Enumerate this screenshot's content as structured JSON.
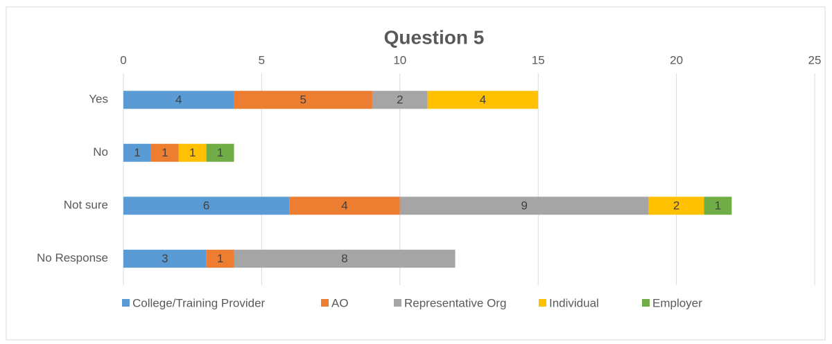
{
  "chart_data": {
    "type": "stacked_barh",
    "title": "Question 5",
    "categories": [
      "Yes",
      "No",
      "Not sure",
      "No Response"
    ],
    "series": [
      {
        "name": "College/Training Provider",
        "color": "#5b9bd5",
        "values": [
          4,
          1,
          6,
          3
        ]
      },
      {
        "name": "AO",
        "color": "#ed7d31",
        "values": [
          5,
          1,
          4,
          1
        ]
      },
      {
        "name": "Representative Org",
        "color": "#a5a5a5",
        "values": [
          2,
          null,
          9,
          8
        ]
      },
      {
        "name": "Individual",
        "color": "#ffc000",
        "values": [
          4,
          1,
          2,
          null
        ]
      },
      {
        "name": "Employer",
        "color": "#70ad47",
        "values": [
          null,
          1,
          1,
          null
        ]
      }
    ],
    "xlim": [
      0,
      25
    ],
    "xticks": [
      0,
      5,
      10,
      15,
      20,
      25
    ],
    "grid": true,
    "legend": "bottom"
  }
}
